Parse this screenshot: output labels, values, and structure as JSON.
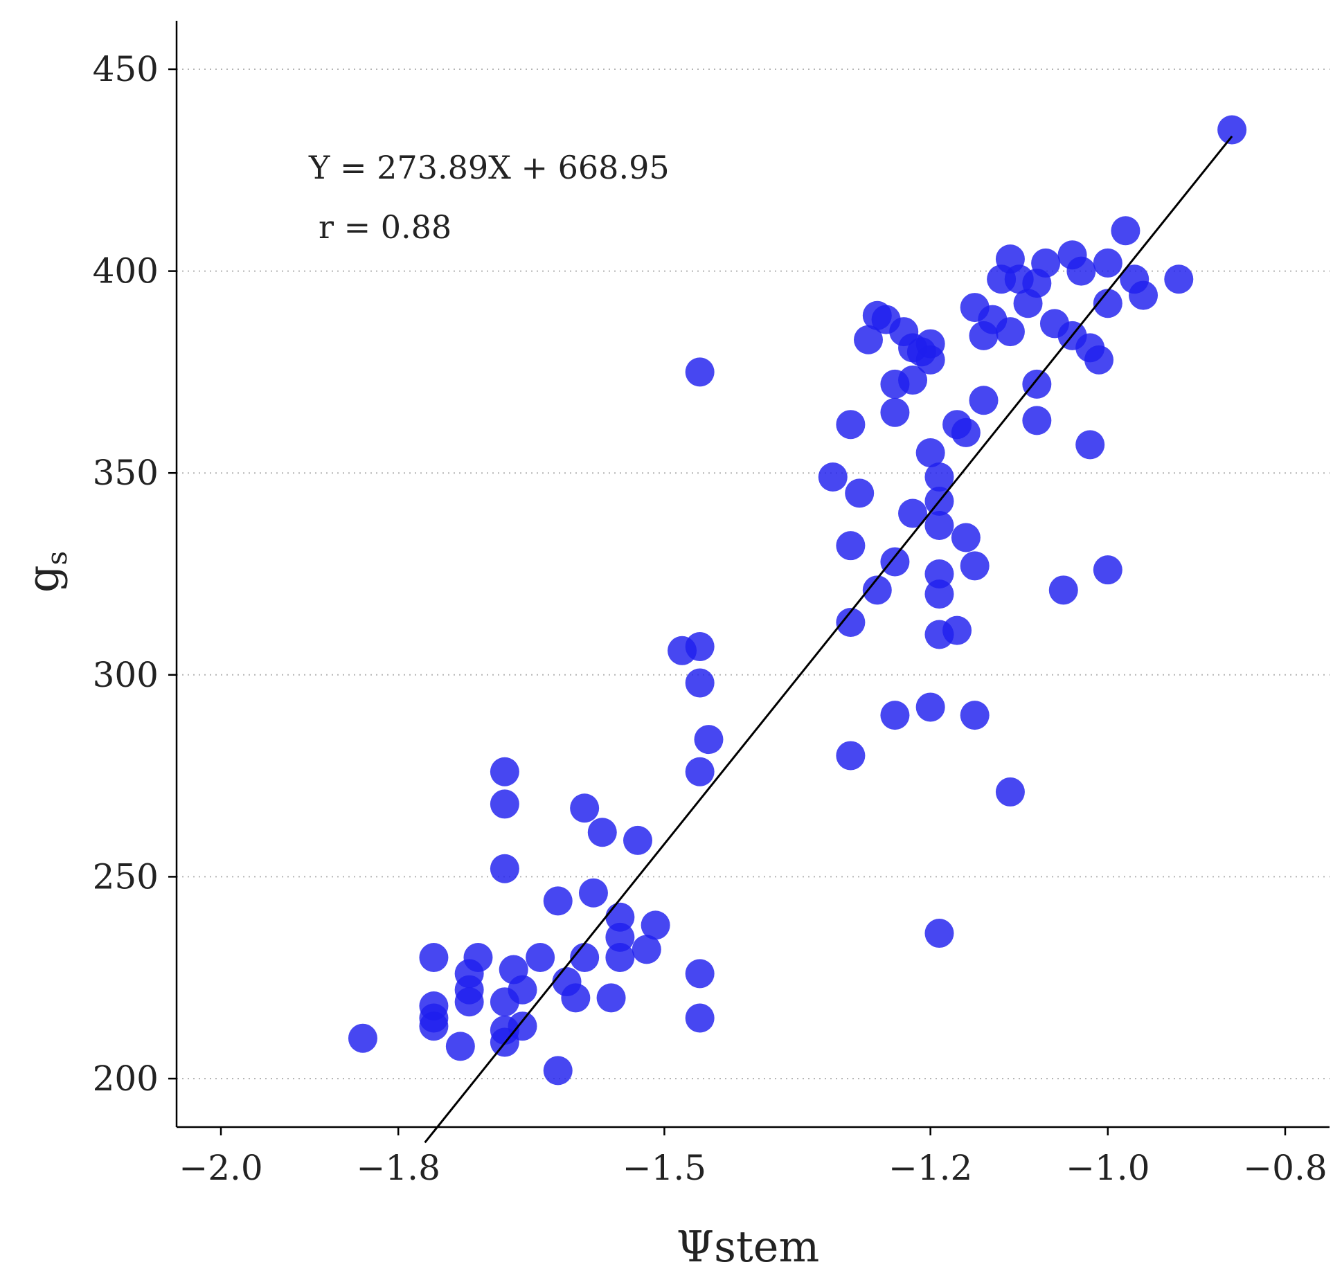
{
  "chart_data": {
    "type": "scatter",
    "title": "",
    "xlabel_symbol": "Ψ",
    "xlabel_text": "stem",
    "ylabel_main": "g",
    "ylabel_sub": "s",
    "xlim": [
      -2.05,
      -0.75
    ],
    "ylim": [
      188,
      462
    ],
    "x_ticks": [
      -2.0,
      -1.8,
      -1.5,
      -1.2,
      -1.0,
      -0.8
    ],
    "x_tick_labels": [
      "−2.0",
      "−1.8",
      "−1.5",
      "−1.2",
      "−1.0",
      "−0.8"
    ],
    "y_ticks": [
      200,
      250,
      300,
      350,
      400,
      450
    ],
    "y_tick_labels": [
      "200",
      "250",
      "300",
      "350",
      "400",
      "450"
    ],
    "grid": "horizontal-dotted",
    "point_color": "#1f1fee",
    "equation": "Y = 273.89X + 668.95",
    "correlation": "r = 0.88",
    "fit": {
      "slope": 273.89,
      "intercept": 668.95,
      "x_range": [
        -1.77,
        -0.86
      ]
    },
    "points": [
      [
        -1.84,
        210
      ],
      [
        -1.76,
        230
      ],
      [
        -1.76,
        218
      ],
      [
        -1.76,
        213
      ],
      [
        -1.76,
        215
      ],
      [
        -1.73,
        208
      ],
      [
        -1.71,
        230
      ],
      [
        -1.72,
        226
      ],
      [
        -1.72,
        222
      ],
      [
        -1.72,
        219
      ],
      [
        -1.68,
        276
      ],
      [
        -1.68,
        268
      ],
      [
        -1.68,
        252
      ],
      [
        -1.68,
        219
      ],
      [
        -1.68,
        212
      ],
      [
        -1.68,
        209
      ],
      [
        -1.67,
        227
      ],
      [
        -1.66,
        222
      ],
      [
        -1.66,
        213
      ],
      [
        -1.64,
        230
      ],
      [
        -1.62,
        244
      ],
      [
        -1.62,
        202
      ],
      [
        -1.61,
        224
      ],
      [
        -1.6,
        220
      ],
      [
        -1.59,
        230
      ],
      [
        -1.59,
        267
      ],
      [
        -1.58,
        246
      ],
      [
        -1.57,
        261
      ],
      [
        -1.56,
        220
      ],
      [
        -1.55,
        240
      ],
      [
        -1.55,
        235
      ],
      [
        -1.55,
        230
      ],
      [
        -1.53,
        259
      ],
      [
        -1.52,
        232
      ],
      [
        -1.51,
        238
      ],
      [
        -1.48,
        306
      ],
      [
        -1.46,
        307
      ],
      [
        -1.46,
        298
      ],
      [
        -1.46,
        276
      ],
      [
        -1.46,
        226
      ],
      [
        -1.46,
        215
      ],
      [
        -1.45,
        284
      ],
      [
        -1.46,
        375
      ],
      [
        -1.31,
        349
      ],
      [
        -1.29,
        332
      ],
      [
        -1.29,
        313
      ],
      [
        -1.29,
        362
      ],
      [
        -1.29,
        280
      ],
      [
        -1.28,
        345
      ],
      [
        -1.27,
        383
      ],
      [
        -1.26,
        389
      ],
      [
        -1.26,
        321
      ],
      [
        -1.25,
        388
      ],
      [
        -1.24,
        372
      ],
      [
        -1.24,
        365
      ],
      [
        -1.24,
        328
      ],
      [
        -1.24,
        290
      ],
      [
        -1.23,
        385
      ],
      [
        -1.22,
        373
      ],
      [
        -1.22,
        340
      ],
      [
        -1.22,
        381
      ],
      [
        -1.21,
        380
      ],
      [
        -1.2,
        382
      ],
      [
        -1.2,
        378
      ],
      [
        -1.2,
        355
      ],
      [
        -1.2,
        292
      ],
      [
        -1.19,
        349
      ],
      [
        -1.19,
        343
      ],
      [
        -1.19,
        337
      ],
      [
        -1.19,
        325
      ],
      [
        -1.19,
        320
      ],
      [
        -1.19,
        310
      ],
      [
        -1.19,
        236
      ],
      [
        -1.17,
        362
      ],
      [
        -1.17,
        311
      ],
      [
        -1.16,
        360
      ],
      [
        -1.16,
        334
      ],
      [
        -1.15,
        327
      ],
      [
        -1.15,
        290
      ],
      [
        -1.15,
        391
      ],
      [
        -1.14,
        384
      ],
      [
        -1.14,
        368
      ],
      [
        -1.13,
        388
      ],
      [
        -1.12,
        398
      ],
      [
        -1.11,
        403
      ],
      [
        -1.11,
        385
      ],
      [
        -1.11,
        271
      ],
      [
        -1.1,
        398
      ],
      [
        -1.09,
        392
      ],
      [
        -1.08,
        397
      ],
      [
        -1.08,
        372
      ],
      [
        -1.08,
        363
      ],
      [
        -1.07,
        402
      ],
      [
        -1.06,
        387
      ],
      [
        -1.05,
        321
      ],
      [
        -1.04,
        404
      ],
      [
        -1.04,
        384
      ],
      [
        -1.03,
        400
      ],
      [
        -1.02,
        381
      ],
      [
        -1.02,
        357
      ],
      [
        -1.01,
        378
      ],
      [
        -1.0,
        402
      ],
      [
        -1.0,
        392
      ],
      [
        -1.0,
        326
      ],
      [
        -0.98,
        410
      ],
      [
        -0.97,
        398
      ],
      [
        -0.96,
        394
      ],
      [
        -0.92,
        398
      ],
      [
        -0.86,
        435
      ]
    ]
  }
}
